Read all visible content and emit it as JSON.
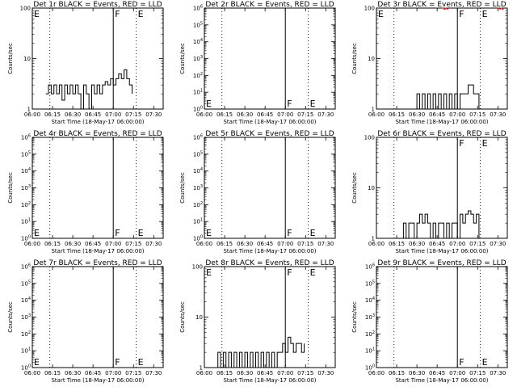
{
  "figure": {
    "colors": {
      "events": "#000000",
      "lld": "#ff0000",
      "background": "#ffffff"
    }
  },
  "chart_data": [
    {
      "type": "line",
      "title": "Det 1r BLACK = Events, RED = LLD",
      "xlabel": "Start Time (18-May-17 06:00:00)",
      "ylabel": "Counts/sec",
      "x_ticks": [
        "06:00",
        "06:15",
        "06:30",
        "06:45",
        "07:00",
        "07:15",
        "07:30"
      ],
      "xlim": [
        "06:00",
        "07:37"
      ],
      "y_scale": "log",
      "ylim": [
        1,
        100
      ],
      "y_ticks": [
        "1",
        "10",
        "100"
      ],
      "dotted_lines_at": [
        "06:13",
        "07:17"
      ],
      "solid_line_at": "07:00",
      "markers": [
        {
          "text": "E",
          "x": "06:00",
          "y": "top"
        },
        {
          "text": "F",
          "x": "07:00",
          "y": "top"
        },
        {
          "text": "E",
          "x": "07:17",
          "y": "top"
        }
      ],
      "series": [
        {
          "color": "#000000",
          "points": [
            [
              "06:10",
              2
            ],
            [
              "06:12",
              3
            ],
            [
              "06:14",
              2
            ],
            [
              "06:16",
              3
            ],
            [
              "06:18",
              2
            ],
            [
              "06:20",
              3
            ],
            [
              "06:22",
              1.5
            ],
            [
              "06:24",
              3
            ],
            [
              "06:26",
              2
            ],
            [
              "06:28",
              3
            ],
            [
              "06:30",
              2
            ],
            [
              "06:32",
              3
            ],
            [
              "06:34",
              2
            ],
            [
              "06:36",
              1
            ],
            [
              "06:38",
              3
            ],
            [
              "06:40",
              2
            ],
            [
              "06:42",
              1
            ],
            [
              "06:44",
              3
            ],
            [
              "06:46",
              2
            ],
            [
              "06:48",
              3
            ],
            [
              "06:50",
              2
            ],
            [
              "06:52",
              3
            ],
            [
              "06:54",
              3.5
            ],
            [
              "06:56",
              3
            ],
            [
              "06:58",
              4
            ],
            [
              "07:00",
              3
            ],
            [
              "07:02",
              4
            ],
            [
              "07:04",
              5
            ],
            [
              "07:06",
              4
            ],
            [
              "07:08",
              6
            ],
            [
              "07:10",
              4
            ],
            [
              "07:12",
              3
            ],
            [
              "07:14",
              2
            ]
          ]
        }
      ]
    },
    {
      "type": "line",
      "title": "Det 2r BLACK = Events, RED = LLD",
      "xlabel": "Start Time (18-May-17 06:00:00)",
      "ylabel": "Counts/sec",
      "x_ticks": [
        "06:00",
        "06:15",
        "06:30",
        "06:45",
        "07:00",
        "07:15",
        "07:30"
      ],
      "xlim": [
        "06:00",
        "07:37"
      ],
      "y_scale": "log",
      "ylim": [
        1,
        1000000
      ],
      "y_ticks": [
        "10^0",
        "10^1",
        "10^2",
        "10^3",
        "10^4",
        "10^5",
        "10^6"
      ],
      "dotted_lines_at": [
        "06:13",
        "07:17"
      ],
      "solid_line_at": "07:00",
      "markers": [
        {
          "text": "E",
          "x": "06:00",
          "y": "bottom"
        },
        {
          "text": "F",
          "x": "07:00",
          "y": "bottom"
        },
        {
          "text": "E",
          "x": "07:17",
          "y": "bottom"
        }
      ],
      "series": []
    },
    {
      "type": "line",
      "title": "Det 3r BLACK = Events, RED = LLD",
      "xlabel": "Start Time (18-May-17 06:00:00)",
      "ylabel": "Counts/sec",
      "x_ticks": [
        "06:00",
        "06:15",
        "06:30",
        "06:45",
        "07:00",
        "07:15",
        "07:30"
      ],
      "xlim": [
        "06:00",
        "07:37"
      ],
      "y_scale": "log",
      "ylim": [
        1,
        100
      ],
      "y_ticks": [
        "1",
        "10",
        "100"
      ],
      "dotted_lines_at": [
        "06:13",
        "07:17"
      ],
      "solid_line_at": "07:00",
      "markers": [
        {
          "text": "E",
          "x": "06:00",
          "y": "top"
        },
        {
          "text": "F",
          "x": "07:00",
          "y": "top"
        },
        {
          "text": "E",
          "x": "07:17",
          "y": "top"
        }
      ],
      "series": [
        {
          "color": "#000000",
          "points": [
            [
              "06:28",
              1
            ],
            [
              "06:30",
              2
            ],
            [
              "06:32",
              1
            ],
            [
              "06:34",
              2
            ],
            [
              "06:36",
              1
            ],
            [
              "06:38",
              2
            ],
            [
              "06:40",
              1
            ],
            [
              "06:42",
              2
            ],
            [
              "06:44",
              1
            ],
            [
              "06:46",
              2
            ],
            [
              "06:48",
              1
            ],
            [
              "06:50",
              2
            ],
            [
              "06:52",
              1
            ],
            [
              "06:54",
              2
            ],
            [
              "06:56",
              1
            ],
            [
              "06:58",
              2
            ],
            [
              "07:00",
              1
            ],
            [
              "07:02",
              2
            ],
            [
              "07:04",
              2
            ],
            [
              "07:06",
              2
            ],
            [
              "07:08",
              3
            ],
            [
              "07:10",
              3
            ],
            [
              "07:12",
              2
            ],
            [
              "07:14",
              2
            ],
            [
              "07:16",
              1
            ]
          ]
        },
        {
          "color": "#ff0000",
          "points": [
            [
              "06:49",
              100
            ],
            [
              "06:50",
              95
            ],
            [
              "06:51",
              100
            ],
            [
              "06:52",
              96
            ],
            [
              "06:53",
              100
            ]
          ]
        },
        {
          "color": "#ff0000",
          "points": [
            [
              "07:30",
              100
            ],
            [
              "07:31",
              96
            ],
            [
              "07:32",
              100
            ],
            [
              "07:33",
              95
            ],
            [
              "07:34",
              100
            ]
          ]
        }
      ]
    },
    {
      "type": "line",
      "title": "Det 4r BLACK = Events, RED = LLD",
      "xlabel": "Start Time (18-May-17 06:00:00)",
      "ylabel": "Counts/sec",
      "x_ticks": [
        "06:00",
        "06:15",
        "06:30",
        "06:45",
        "07:00",
        "07:15",
        "07:30"
      ],
      "xlim": [
        "06:00",
        "07:37"
      ],
      "y_scale": "log",
      "ylim": [
        1,
        1000000
      ],
      "y_ticks": [
        "10^0",
        "10^1",
        "10^2",
        "10^3",
        "10^4",
        "10^5",
        "10^6"
      ],
      "dotted_lines_at": [
        "06:13",
        "07:17"
      ],
      "solid_line_at": "07:00",
      "markers": [
        {
          "text": "E",
          "x": "06:00",
          "y": "bottom"
        },
        {
          "text": "F",
          "x": "07:00",
          "y": "bottom"
        },
        {
          "text": "E",
          "x": "07:17",
          "y": "bottom"
        }
      ],
      "series": []
    },
    {
      "type": "line",
      "title": "Det 5r BLACK = Events, RED = LLD",
      "xlabel": "Start Time (18-May-17 06:00:00)",
      "ylabel": "Counts/sec",
      "x_ticks": [
        "06:00",
        "06:15",
        "06:30",
        "06:45",
        "07:00",
        "07:15",
        "07:30"
      ],
      "xlim": [
        "06:00",
        "07:37"
      ],
      "y_scale": "log",
      "ylim": [
        1,
        1000000
      ],
      "y_ticks": [
        "10^0",
        "10^1",
        "10^2",
        "10^3",
        "10^4",
        "10^5",
        "10^6"
      ],
      "dotted_lines_at": [
        "06:13",
        "07:17"
      ],
      "solid_line_at": "07:00",
      "markers": [
        {
          "text": "E",
          "x": "06:00",
          "y": "bottom"
        },
        {
          "text": "F",
          "x": "07:00",
          "y": "bottom"
        },
        {
          "text": "E",
          "x": "07:17",
          "y": "bottom"
        }
      ],
      "series": []
    },
    {
      "type": "line",
      "title": "Det 6r BLACK = Events, RED = LLD",
      "xlabel": "Start Time (18-May-17 06:00:00)",
      "ylabel": "Counts/sec",
      "x_ticks": [
        "06:00",
        "06:15",
        "06:30",
        "06:45",
        "07:00",
        "07:15",
        "07:30"
      ],
      "xlim": [
        "06:00",
        "07:37"
      ],
      "y_scale": "log",
      "ylim": [
        1,
        100
      ],
      "y_ticks": [
        "1",
        "10",
        "100"
      ],
      "dotted_lines_at": [
        "06:13",
        "07:17"
      ],
      "solid_line_at": "07:00",
      "markers": [
        {
          "text": "F",
          "x": "07:00",
          "y": "top"
        },
        {
          "text": "E",
          "x": "07:17",
          "y": "top"
        }
      ],
      "series": [
        {
          "color": "#000000",
          "points": [
            [
              "06:19",
              1
            ],
            [
              "06:20",
              2
            ],
            [
              "06:22",
              1
            ],
            [
              "06:24",
              2
            ],
            [
              "06:26",
              2
            ],
            [
              "06:28",
              1
            ],
            [
              "06:30",
              2
            ],
            [
              "06:32",
              3
            ],
            [
              "06:34",
              2
            ],
            [
              "06:36",
              3
            ],
            [
              "06:38",
              2
            ],
            [
              "06:40",
              1
            ],
            [
              "06:42",
              2
            ],
            [
              "06:44",
              1
            ],
            [
              "06:46",
              2
            ],
            [
              "06:48",
              2
            ],
            [
              "06:50",
              1
            ],
            [
              "06:52",
              2
            ],
            [
              "06:54",
              1
            ],
            [
              "06:56",
              2
            ],
            [
              "06:58",
              2
            ],
            [
              "07:00",
              1
            ],
            [
              "07:02",
              3
            ],
            [
              "07:04",
              2
            ],
            [
              "07:06",
              3
            ],
            [
              "07:08",
              3.5
            ],
            [
              "07:10",
              3
            ],
            [
              "07:12",
              2
            ],
            [
              "07:14",
              3
            ],
            [
              "07:16",
              1
            ]
          ]
        }
      ]
    },
    {
      "type": "line",
      "title": "Det 7r BLACK = Events, RED = LLD",
      "xlabel": "Start Time (18-May-17 06:00:00)",
      "ylabel": "Counts/sec",
      "x_ticks": [
        "06:00",
        "06:15",
        "06:30",
        "06:45",
        "07:00",
        "07:15",
        "07:30"
      ],
      "xlim": [
        "06:00",
        "07:37"
      ],
      "y_scale": "log",
      "ylim": [
        1,
        1000000
      ],
      "y_ticks": [
        "10^0",
        "10^1",
        "10^2",
        "10^3",
        "10^4",
        "10^5",
        "10^6"
      ],
      "dotted_lines_at": [
        "06:13",
        "07:17"
      ],
      "solid_line_at": "07:00",
      "markers": [
        {
          "text": "E",
          "x": "06:00",
          "y": "bottom"
        },
        {
          "text": "F",
          "x": "07:00",
          "y": "bottom"
        },
        {
          "text": "E",
          "x": "07:17",
          "y": "bottom"
        }
      ],
      "series": []
    },
    {
      "type": "line",
      "title": "Det 8r BLACK = Events, RED = LLD",
      "xlabel": "Start Time (18-May-17 06:00:00)",
      "ylabel": "Counts/sec",
      "x_ticks": [
        "06:00",
        "06:15",
        "06:30",
        "06:45",
        "07:00",
        "07:15",
        "07:30"
      ],
      "xlim": [
        "06:00",
        "07:37"
      ],
      "y_scale": "log",
      "ylim": [
        1,
        100
      ],
      "y_ticks": [
        "1",
        "10",
        "100"
      ],
      "dotted_lines_at": [
        "06:13",
        "07:17"
      ],
      "solid_line_at": "07:00",
      "markers": [
        {
          "text": "E",
          "x": "06:00",
          "y": "top"
        },
        {
          "text": "F",
          "x": "07:00",
          "y": "top"
        },
        {
          "text": "E",
          "x": "07:17",
          "y": "top"
        }
      ],
      "series": [
        {
          "color": "#000000",
          "points": [
            [
              "06:08",
              1
            ],
            [
              "06:10",
              2
            ],
            [
              "06:12",
              1
            ],
            [
              "06:14",
              2
            ],
            [
              "06:16",
              1
            ],
            [
              "06:18",
              2
            ],
            [
              "06:20",
              1
            ],
            [
              "06:22",
              2
            ],
            [
              "06:24",
              1
            ],
            [
              "06:26",
              2
            ],
            [
              "06:28",
              1
            ],
            [
              "06:30",
              2
            ],
            [
              "06:32",
              1
            ],
            [
              "06:34",
              2
            ],
            [
              "06:36",
              1
            ],
            [
              "06:38",
              2
            ],
            [
              "06:40",
              1
            ],
            [
              "06:42",
              2
            ],
            [
              "06:44",
              1
            ],
            [
              "06:46",
              2
            ],
            [
              "06:48",
              1
            ],
            [
              "06:50",
              2
            ],
            [
              "06:52",
              1
            ],
            [
              "06:54",
              2
            ],
            [
              "06:56",
              2
            ],
            [
              "06:58",
              3
            ],
            [
              "07:00",
              2
            ],
            [
              "07:02",
              4
            ],
            [
              "07:04",
              3
            ],
            [
              "07:06",
              2
            ],
            [
              "07:08",
              3
            ],
            [
              "07:10",
              3
            ],
            [
              "07:12",
              2
            ],
            [
              "07:14",
              3
            ]
          ]
        }
      ]
    },
    {
      "type": "line",
      "title": "Det 9r BLACK = Events, RED = LLD",
      "xlabel": "Start Time (18-May-17 06:00:00)",
      "ylabel": "Counts/sec",
      "x_ticks": [
        "06:00",
        "06:15",
        "06:30",
        "06:45",
        "07:00",
        "07:15",
        "07:30"
      ],
      "xlim": [
        "06:00",
        "07:37"
      ],
      "y_scale": "log",
      "ylim": [
        1,
        1000000
      ],
      "y_ticks": [
        "10^0",
        "10^1",
        "10^2",
        "10^3",
        "10^4",
        "10^5",
        "10^6"
      ],
      "dotted_lines_at": [
        "06:13",
        "07:17"
      ],
      "solid_line_at": "07:00",
      "markers": [
        {
          "text": "F",
          "x": "07:00",
          "y": "bottom"
        },
        {
          "text": "E",
          "x": "07:17",
          "y": "bottom"
        }
      ],
      "series": []
    }
  ]
}
